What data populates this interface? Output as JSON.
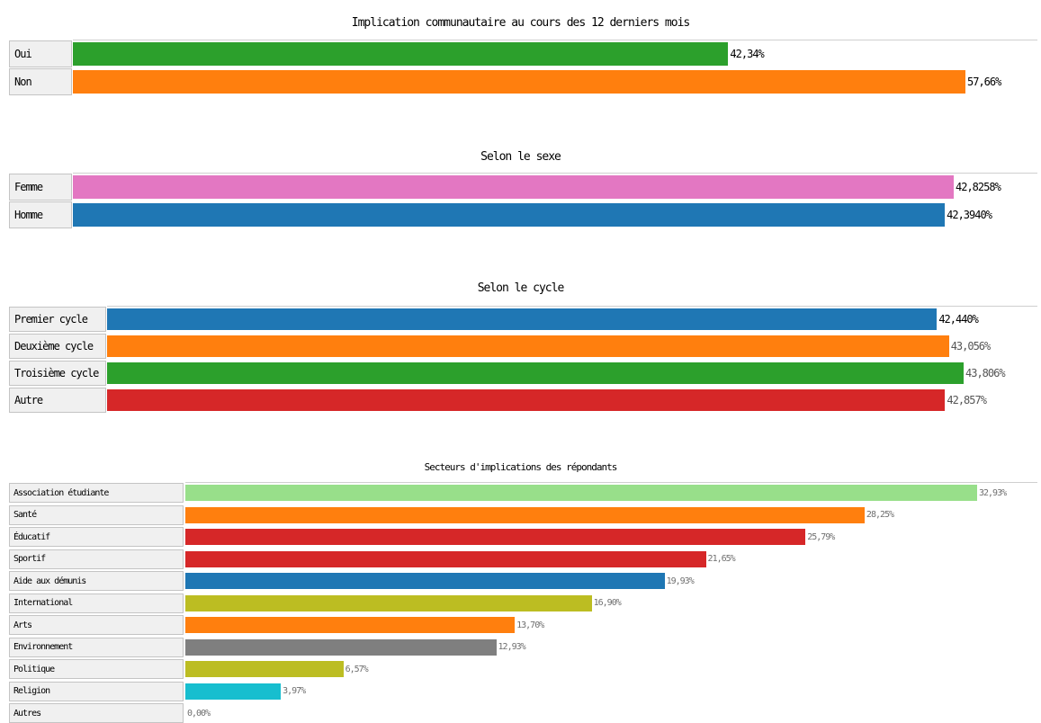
{
  "colors": {
    "green": "#2ca02c",
    "orange": "#ff7f0e",
    "pink": "#e377c2",
    "blue": "#1f77b4",
    "red": "#d62728",
    "lightgreen": "#98df8a",
    "olive": "#bcbd22",
    "gray": "#7f7f7f",
    "cyan": "#17becf"
  },
  "chart_data": [
    {
      "type": "bar",
      "orientation": "horizontal",
      "title": "Implication communautaire au cours des 12 derniers mois",
      "categories": [
        "Oui",
        "Non"
      ],
      "values": [
        42.34,
        57.66
      ],
      "value_labels": [
        "42,34%",
        "57,66%"
      ],
      "colors": [
        "#2ca02c",
        "#ff7f0e"
      ],
      "xlim": [
        0,
        57.66
      ],
      "grid": false,
      "legend": "none"
    },
    {
      "type": "bar",
      "orientation": "horizontal",
      "title": "Selon le sexe",
      "categories": [
        "Femme",
        "Homme"
      ],
      "values": [
        42.8258,
        42.394
      ],
      "value_labels": [
        "42,8258%",
        "42,3940%"
      ],
      "colors": [
        "#e377c2",
        "#1f77b4"
      ],
      "xlim": [
        0,
        42.8258
      ],
      "grid": false,
      "legend": "none"
    },
    {
      "type": "bar",
      "orientation": "horizontal",
      "title": "Selon le cycle",
      "categories": [
        "Premier cycle",
        "Deuxième cycle",
        "Troisième cycle",
        "Autre"
      ],
      "values": [
        42.44,
        43.056,
        43.806,
        42.857
      ],
      "value_labels": [
        "42,440%",
        "43,056%",
        "43,806%",
        "42,857%"
      ],
      "colors": [
        "#1f77b4",
        "#ff7f0e",
        "#2ca02c",
        "#d62728"
      ],
      "xlim": [
        0,
        43.806
      ],
      "grid": false,
      "legend": "none"
    },
    {
      "type": "bar",
      "orientation": "horizontal",
      "title": "Secteurs d'implications des répondants",
      "categories": [
        "Association étudiante",
        "Santé",
        "Éducatif",
        "Sportif",
        "Aide aux démunis",
        "International",
        "Arts",
        "Environnement",
        "Politique",
        "Religion",
        "Autres"
      ],
      "values": [
        32.93,
        28.25,
        25.79,
        21.65,
        19.93,
        16.9,
        13.7,
        12.93,
        6.57,
        3.97,
        0.0
      ],
      "value_labels": [
        "32,93%",
        "28,25%",
        "25,79%",
        "21,65%",
        "19,93%",
        "16,90%",
        "13,70%",
        "12,93%",
        "6,57%",
        "3,97%",
        "0,00%"
      ],
      "colors": [
        "#98df8a",
        "#ff7f0e",
        "#d62728",
        "#d62728",
        "#1f77b4",
        "#bcbd22",
        "#ff7f0e",
        "#7f7f7f",
        "#bcbd22",
        "#17becf",
        "#17becf"
      ],
      "xlim": [
        0,
        32.93
      ],
      "grid": false,
      "legend": "none"
    }
  ]
}
